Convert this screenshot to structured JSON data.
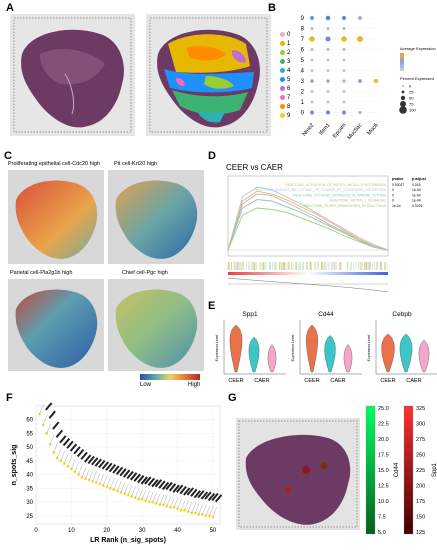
{
  "panels": {
    "A": "A",
    "B": "B",
    "C": "C",
    "D": "D",
    "E": "E",
    "F": "F",
    "G": "G"
  },
  "panel_a": {
    "cluster_ids": [
      "0",
      "1",
      "2",
      "3",
      "4",
      "5",
      "6",
      "7",
      "8",
      "9"
    ],
    "cluster_colors": [
      "#f7a6c0",
      "#e6b800",
      "#9acd32",
      "#3cb371",
      "#2bb3b3",
      "#1e90ff",
      "#c06bd6",
      "#ff69b4",
      "#ff8c00",
      "#f0d020"
    ]
  },
  "chart_data": [
    {
      "type": "scatter",
      "panel": "B",
      "categories": [
        "Nme2",
        "Ifitm1",
        "Epcam",
        "Muc5ac",
        "Muc6"
      ],
      "y_categories": [
        "0",
        "1",
        "2",
        "3",
        "4",
        "5",
        "6",
        "7",
        "8",
        "9"
      ],
      "legend_expression_title": "Average Expression",
      "legend_percent_title": "Percent Expressed",
      "legend_percent_values": [
        "0",
        "25",
        "50",
        "75",
        "100"
      ],
      "points": [
        {
          "x": "Nme2",
          "y": "9",
          "pct": 40,
          "expr": 0.6
        },
        {
          "x": "Ifitm1",
          "y": "9",
          "pct": 45,
          "expr": 0.8
        },
        {
          "x": "Epcam",
          "y": "9",
          "pct": 40,
          "expr": 0.7
        },
        {
          "x": "Muc5ac",
          "y": "9",
          "pct": 40,
          "expr": 0.3
        },
        {
          "x": "Nme2",
          "y": "8",
          "pct": 20,
          "expr": 0.2
        },
        {
          "x": "Ifitm1",
          "y": "8",
          "pct": 20,
          "expr": 0.2
        },
        {
          "x": "Epcam",
          "y": "8",
          "pct": 20,
          "expr": 0.3
        },
        {
          "x": "Nme2",
          "y": "7",
          "pct": 60,
          "expr": 0.9
        },
        {
          "x": "Ifitm1",
          "y": "7",
          "pct": 55,
          "expr": 0.7
        },
        {
          "x": "Epcam",
          "y": "7",
          "pct": 60,
          "expr": 0.9
        },
        {
          "x": "Muc5ac",
          "y": "7",
          "pct": 70,
          "expr": 0.95
        },
        {
          "x": "Nme2",
          "y": "6",
          "pct": 20,
          "expr": 0.2
        },
        {
          "x": "Ifitm1",
          "y": "6",
          "pct": 20,
          "expr": 0.3
        },
        {
          "x": "Epcam",
          "y": "6",
          "pct": 20,
          "expr": 0.3
        },
        {
          "x": "Nme2",
          "y": "5",
          "pct": 15,
          "expr": 0.2
        },
        {
          "x": "Ifitm1",
          "y": "5",
          "pct": 15,
          "expr": 0.2
        },
        {
          "x": "Epcam",
          "y": "5",
          "pct": 15,
          "expr": 0.2
        },
        {
          "x": "Nme2",
          "y": "4",
          "pct": 15,
          "expr": 0.2
        },
        {
          "x": "Ifitm1",
          "y": "4",
          "pct": 15,
          "expr": 0.2
        },
        {
          "x": "Epcam",
          "y": "4",
          "pct": 15,
          "expr": 0.2
        },
        {
          "x": "Nme2",
          "y": "3",
          "pct": 30,
          "expr": 0.5
        },
        {
          "x": "Ifitm1",
          "y": "3",
          "pct": 30,
          "expr": 0.4
        },
        {
          "x": "Epcam",
          "y": "3",
          "pct": 25,
          "expr": 0.3
        },
        {
          "x": "Muc5ac",
          "y": "3",
          "pct": 35,
          "expr": 0.5
        },
        {
          "x": "Muc6",
          "y": "3",
          "pct": 40,
          "expr": 0.9
        },
        {
          "x": "Nme2",
          "y": "2",
          "pct": 15,
          "expr": 0.2
        },
        {
          "x": "Ifitm1",
          "y": "2",
          "pct": 15,
          "expr": 0.2
        },
        {
          "x": "Epcam",
          "y": "2",
          "pct": 15,
          "expr": 0.2
        },
        {
          "x": "Nme2",
          "y": "1",
          "pct": 15,
          "expr": 0.2
        },
        {
          "x": "Ifitm1",
          "y": "1",
          "pct": 15,
          "expr": 0.2
        },
        {
          "x": "Epcam",
          "y": "1",
          "pct": 15,
          "expr": 0.2
        },
        {
          "x": "Nme2",
          "y": "0",
          "pct": 40,
          "expr": 0.6
        },
        {
          "x": "Ifitm1",
          "y": "0",
          "pct": 40,
          "expr": 0.7
        },
        {
          "x": "Epcam",
          "y": "0",
          "pct": 40,
          "expr": 0.6
        },
        {
          "x": "Muc5ac",
          "y": "0",
          "pct": 25,
          "expr": 0.3
        }
      ]
    },
    {
      "type": "line",
      "panel": "D",
      "title": "CEER vs CAER",
      "series": [
        {
          "name": "REACTOME_ACTIVATION_OF_MATRIX_METALLOPROTEINASES",
          "color": "#e8b850",
          "values": [
            0,
            0.35,
            0.42,
            0.4,
            0.36,
            0.31,
            0.26,
            0.2,
            0.14,
            0.08,
            0.03,
            0
          ]
        },
        {
          "name": "REACTOME_BINDING_AND_UPTAKE_OF_LIGANDS_BY_SCAVENGER_RECEPTORS",
          "color": "#b0c8e0",
          "values": [
            0,
            0.38,
            0.45,
            0.43,
            0.38,
            0.33,
            0.27,
            0.21,
            0.15,
            0.09,
            0.04,
            0
          ]
        },
        {
          "name": "REACTOME_CYTOKINE_SIGNALING_IN_IMMUNE_SYSTEM",
          "color": "#80c8c8",
          "values": [
            0,
            0.3,
            0.36,
            0.35,
            0.31,
            0.27,
            0.22,
            0.17,
            0.12,
            0.07,
            0.02,
            0
          ]
        },
        {
          "name": "REACTOME_NETRIN_1_SIGNALING",
          "color": "#d8a8a8",
          "values": [
            0,
            0.33,
            0.4,
            0.39,
            0.34,
            0.29,
            0.24,
            0.18,
            0.13,
            0.07,
            0.03,
            0
          ]
        },
        {
          "name": "REACTOME_OTHER_SEMAPHORIN_INTERACTIONS",
          "color": "#9ccf70",
          "values": [
            0,
            0.25,
            0.3,
            0.29,
            0.27,
            0.23,
            0.19,
            0.15,
            0.1,
            0.06,
            0.02,
            0
          ]
        }
      ],
      "table_headers": [
        "pvalue",
        "p.adjust"
      ],
      "table_rows": [
        [
          "0.00027",
          "0.018"
        ],
        [
          "0",
          "1e-04"
        ],
        [
          "0",
          "1e-04"
        ],
        [
          "0",
          "1e-04"
        ],
        [
          "1e-04",
          "0.0025"
        ]
      ]
    },
    {
      "type": "violin",
      "panel": "E",
      "genes": [
        "Spp1",
        "Cd44",
        "Cebpb"
      ],
      "groups": [
        "CEER",
        "CAER"
      ],
      "group_colors": [
        "#e8734a",
        "#3cc6c6",
        "#f2a6c8"
      ],
      "ylabel": "Expression Level"
    },
    {
      "type": "scatter",
      "panel": "F",
      "xlabel": "LR Rank (n_sig_spots)",
      "ylabel": "n_spots_sig",
      "xlim": [
        0,
        52
      ],
      "ylim": [
        22,
        65
      ],
      "xticks": [
        0,
        10,
        20,
        30,
        40,
        50
      ],
      "yticks": [
        25,
        30,
        35,
        40,
        45,
        50,
        55,
        60
      ],
      "x": [
        1,
        2,
        3,
        4,
        5,
        6,
        7,
        8,
        9,
        10,
        11,
        12,
        13,
        14,
        15,
        16,
        17,
        18,
        19,
        20,
        21,
        22,
        23,
        24,
        25,
        26,
        27,
        28,
        29,
        30,
        31,
        32,
        33,
        34,
        35,
        36,
        37,
        38,
        39,
        40,
        41,
        42,
        43,
        44,
        45,
        46,
        47,
        48,
        49,
        50
      ],
      "y": [
        62,
        58,
        55,
        51,
        48,
        46,
        45,
        44,
        43,
        42,
        41,
        40,
        39,
        38.5,
        38,
        37.5,
        37,
        36.5,
        36,
        35.5,
        35,
        34.5,
        34,
        33.5,
        33,
        32.5,
        32,
        31.5,
        31,
        31,
        30.5,
        30,
        30,
        29.5,
        29,
        29,
        28.5,
        28,
        28,
        27.5,
        27,
        27,
        26.5,
        26,
        26,
        25.5,
        25.5,
        25,
        25,
        24.5
      ]
    },
    {
      "type": "heatmap",
      "panel": "G",
      "colorbars": [
        {
          "label": "Cd44",
          "ticks": [
            "25.0",
            "22.5",
            "20.0",
            "17.5",
            "15.0",
            "12.5",
            "10.0",
            "7.5",
            "5.0"
          ],
          "gradient": [
            "#00ff60",
            "#006020"
          ]
        },
        {
          "label": "Spp1",
          "ticks": [
            "325",
            "300",
            "275",
            "250",
            "225",
            "200",
            "175",
            "150",
            "125"
          ],
          "gradient": [
            "#ff3030",
            "#400000"
          ]
        }
      ]
    }
  ],
  "panel_c": {
    "titles": [
      "Proliferating epithelial cell-Cdc20 high",
      "Pit cell-Krt20 high",
      "Parietal cell-Pla2g1b high",
      "Chief cell-Pgc high"
    ],
    "legend_low": "Low",
    "legend_high": "High"
  }
}
